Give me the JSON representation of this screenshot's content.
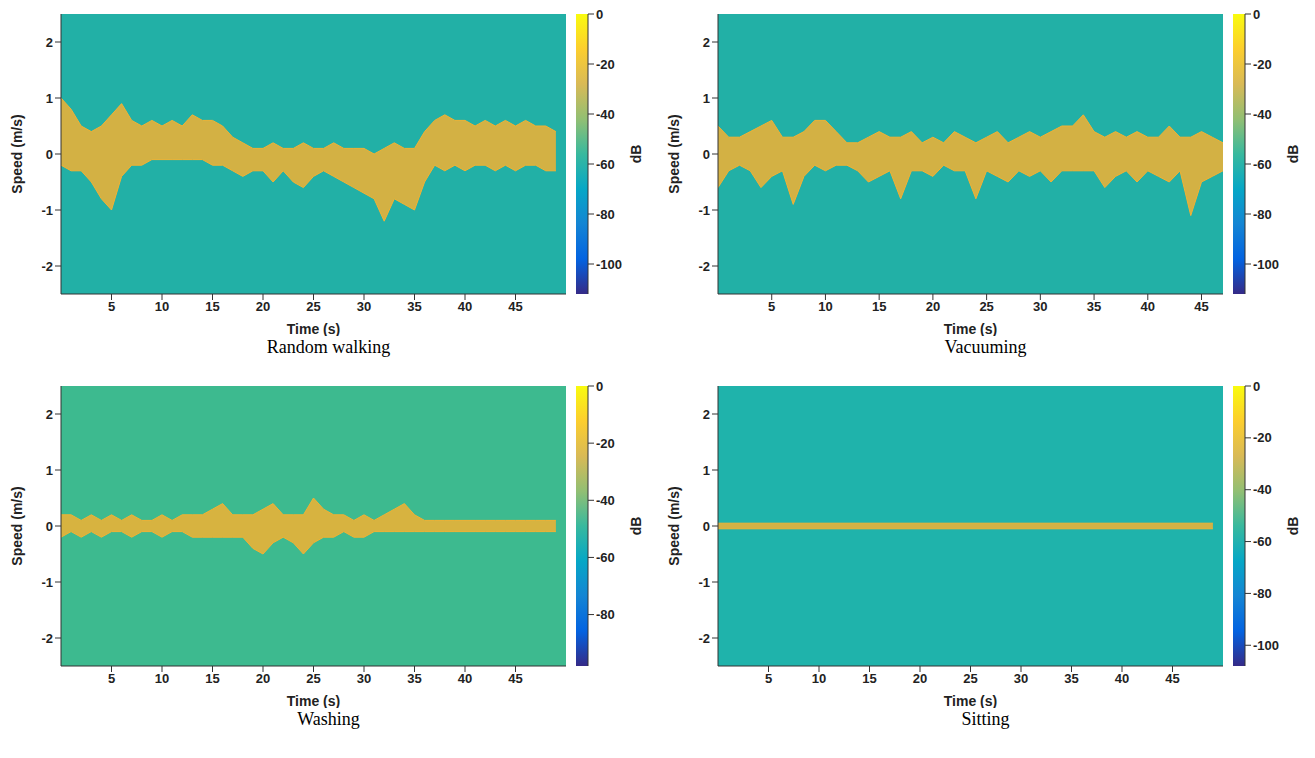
{
  "chart_data": [
    {
      "type": "area",
      "title": "Random walking",
      "x_label": "Time (s)",
      "y_label": "Speed (m/s)",
      "color": "#f2b233",
      "grid": false,
      "x": [
        0,
        1,
        2,
        3,
        4,
        5,
        6,
        7,
        8,
        9,
        10,
        11,
        12,
        13,
        14,
        15,
        16,
        17,
        18,
        19,
        20,
        21,
        22,
        23,
        24,
        25,
        26,
        27,
        28,
        29,
        30,
        31,
        32,
        33,
        34,
        35,
        36,
        37,
        38,
        39,
        40,
        41,
        42,
        43,
        44,
        45,
        46,
        47,
        48,
        49
      ],
      "upper": [
        1.0,
        0.8,
        0.5,
        0.4,
        0.5,
        0.7,
        0.9,
        0.6,
        0.5,
        0.6,
        0.5,
        0.6,
        0.5,
        0.7,
        0.6,
        0.6,
        0.5,
        0.3,
        0.2,
        0.1,
        0.1,
        0.2,
        0.1,
        0.1,
        0.2,
        0.1,
        0.1,
        0.2,
        0.1,
        0.1,
        0.1,
        0.0,
        0.1,
        0.2,
        0.1,
        0.1,
        0.4,
        0.6,
        0.7,
        0.6,
        0.6,
        0.5,
        0.6,
        0.5,
        0.6,
        0.5,
        0.6,
        0.5,
        0.5,
        0.4
      ],
      "lower": [
        -0.2,
        -0.3,
        -0.3,
        -0.5,
        -0.8,
        -1.0,
        -0.4,
        -0.2,
        -0.2,
        -0.1,
        -0.1,
        -0.1,
        -0.1,
        -0.1,
        -0.1,
        -0.2,
        -0.2,
        -0.3,
        -0.4,
        -0.3,
        -0.3,
        -0.5,
        -0.3,
        -0.5,
        -0.6,
        -0.4,
        -0.3,
        -0.4,
        -0.5,
        -0.6,
        -0.7,
        -0.8,
        -1.2,
        -0.8,
        -0.9,
        -1.0,
        -0.5,
        -0.2,
        -0.3,
        -0.2,
        -0.3,
        -0.2,
        -0.2,
        -0.3,
        -0.2,
        -0.3,
        -0.2,
        -0.2,
        -0.3,
        -0.3
      ],
      "xlim": [
        0,
        50
      ],
      "xticks": [
        5,
        10,
        15,
        20,
        25,
        30,
        35,
        40,
        45
      ],
      "ylim": [
        -2.5,
        2.5
      ],
      "yticks": [
        -2,
        -1,
        0,
        1,
        2
      ],
      "colorbar": {
        "label": "dB",
        "range": [
          -112,
          0
        ],
        "ticks": [
          0,
          -20,
          -40,
          -60,
          -80,
          -100
        ]
      }
    },
    {
      "type": "area",
      "title": "Vacuuming",
      "x_label": "Time (s)",
      "y_label": "Speed (m/s)",
      "color": "#f2b233",
      "grid": false,
      "x": [
        0,
        1,
        2,
        3,
        4,
        5,
        6,
        7,
        8,
        9,
        10,
        11,
        12,
        13,
        14,
        15,
        16,
        17,
        18,
        19,
        20,
        21,
        22,
        23,
        24,
        25,
        26,
        27,
        28,
        29,
        30,
        31,
        32,
        33,
        34,
        35,
        36,
        37,
        38,
        39,
        40,
        41,
        42,
        43,
        44,
        45,
        46,
        47
      ],
      "upper": [
        0.5,
        0.3,
        0.3,
        0.4,
        0.5,
        0.6,
        0.3,
        0.3,
        0.4,
        0.6,
        0.6,
        0.4,
        0.2,
        0.2,
        0.3,
        0.4,
        0.3,
        0.3,
        0.4,
        0.2,
        0.3,
        0.2,
        0.4,
        0.3,
        0.2,
        0.3,
        0.4,
        0.2,
        0.3,
        0.4,
        0.3,
        0.4,
        0.5,
        0.5,
        0.7,
        0.4,
        0.3,
        0.4,
        0.3,
        0.4,
        0.3,
        0.3,
        0.5,
        0.3,
        0.3,
        0.4,
        0.3,
        0.2
      ],
      "lower": [
        -0.6,
        -0.3,
        -0.2,
        -0.3,
        -0.6,
        -0.4,
        -0.3,
        -0.9,
        -0.4,
        -0.2,
        -0.3,
        -0.2,
        -0.2,
        -0.3,
        -0.5,
        -0.4,
        -0.3,
        -0.8,
        -0.3,
        -0.3,
        -0.4,
        -0.2,
        -0.3,
        -0.3,
        -0.8,
        -0.3,
        -0.4,
        -0.5,
        -0.3,
        -0.4,
        -0.3,
        -0.5,
        -0.3,
        -0.3,
        -0.3,
        -0.3,
        -0.6,
        -0.4,
        -0.3,
        -0.5,
        -0.3,
        -0.4,
        -0.5,
        -0.3,
        -1.1,
        -0.5,
        -0.4,
        -0.3
      ],
      "xlim": [
        0,
        47
      ],
      "xticks": [
        5,
        10,
        15,
        20,
        25,
        30,
        35,
        40,
        45
      ],
      "ylim": [
        -2.5,
        2.5
      ],
      "yticks": [
        -2,
        -1,
        0,
        1,
        2
      ],
      "colorbar": {
        "label": "dB",
        "range": [
          -112,
          0
        ],
        "ticks": [
          0,
          -20,
          -40,
          -60,
          -80,
          -100
        ]
      }
    },
    {
      "type": "area",
      "title": "Washing",
      "x_label": "Time (s)",
      "y_label": "Speed (m/s)",
      "color": "#f2b233",
      "grid": false,
      "x": [
        0,
        1,
        2,
        3,
        4,
        5,
        6,
        7,
        8,
        9,
        10,
        11,
        12,
        13,
        14,
        15,
        16,
        17,
        18,
        19,
        20,
        21,
        22,
        23,
        24,
        25,
        26,
        27,
        28,
        29,
        30,
        31,
        32,
        33,
        34,
        35,
        36,
        37,
        38,
        39,
        40,
        41,
        42,
        43,
        44,
        45,
        46,
        47,
        48,
        49
      ],
      "upper": [
        0.2,
        0.2,
        0.1,
        0.2,
        0.1,
        0.2,
        0.1,
        0.2,
        0.1,
        0.1,
        0.2,
        0.1,
        0.2,
        0.2,
        0.2,
        0.3,
        0.4,
        0.2,
        0.2,
        0.2,
        0.3,
        0.4,
        0.2,
        0.2,
        0.2,
        0.5,
        0.3,
        0.2,
        0.2,
        0.1,
        0.2,
        0.1,
        0.2,
        0.3,
        0.4,
        0.2,
        0.1,
        0.1,
        0.1,
        0.1,
        0.1,
        0.1,
        0.1,
        0.1,
        0.1,
        0.1,
        0.1,
        0.1,
        0.1,
        0.1
      ],
      "lower": [
        -0.2,
        -0.1,
        -0.2,
        -0.1,
        -0.2,
        -0.1,
        -0.1,
        -0.2,
        -0.1,
        -0.1,
        -0.2,
        -0.1,
        -0.1,
        -0.2,
        -0.2,
        -0.2,
        -0.2,
        -0.2,
        -0.2,
        -0.4,
        -0.5,
        -0.3,
        -0.2,
        -0.3,
        -0.5,
        -0.3,
        -0.2,
        -0.2,
        -0.1,
        -0.2,
        -0.2,
        -0.1,
        -0.1,
        -0.1,
        -0.1,
        -0.1,
        -0.1,
        -0.1,
        -0.1,
        -0.1,
        -0.1,
        -0.1,
        -0.1,
        -0.1,
        -0.1,
        -0.1,
        -0.1,
        -0.1,
        -0.1,
        -0.1
      ],
      "xlim": [
        0,
        50
      ],
      "xticks": [
        5,
        10,
        15,
        20,
        25,
        30,
        35,
        40,
        45
      ],
      "ylim": [
        -2.5,
        2.5
      ],
      "yticks": [
        -2,
        -1,
        0,
        1,
        2
      ],
      "colorbar": {
        "label": "dB",
        "range": [
          -98,
          0
        ],
        "ticks": [
          0,
          -20,
          -40,
          -60,
          -80
        ]
      }
    },
    {
      "type": "area",
      "title": "Sitting",
      "x_label": "Time (s)",
      "y_label": "Speed (m/s)",
      "color": "#f2b233",
      "grid": false,
      "x": [
        0,
        49
      ],
      "upper": [
        0.05,
        0.05
      ],
      "lower": [
        -0.05,
        -0.05
      ],
      "xlim": [
        0,
        50
      ],
      "xticks": [
        5,
        10,
        15,
        20,
        25,
        30,
        35,
        40,
        45
      ],
      "ylim": [
        -2.5,
        2.5
      ],
      "yticks": [
        -2,
        -1,
        0,
        1,
        2
      ],
      "colorbar": {
        "label": "dB",
        "range": [
          -108,
          0
        ],
        "ticks": [
          0,
          -20,
          -40,
          -60,
          -80,
          -100
        ]
      }
    }
  ]
}
